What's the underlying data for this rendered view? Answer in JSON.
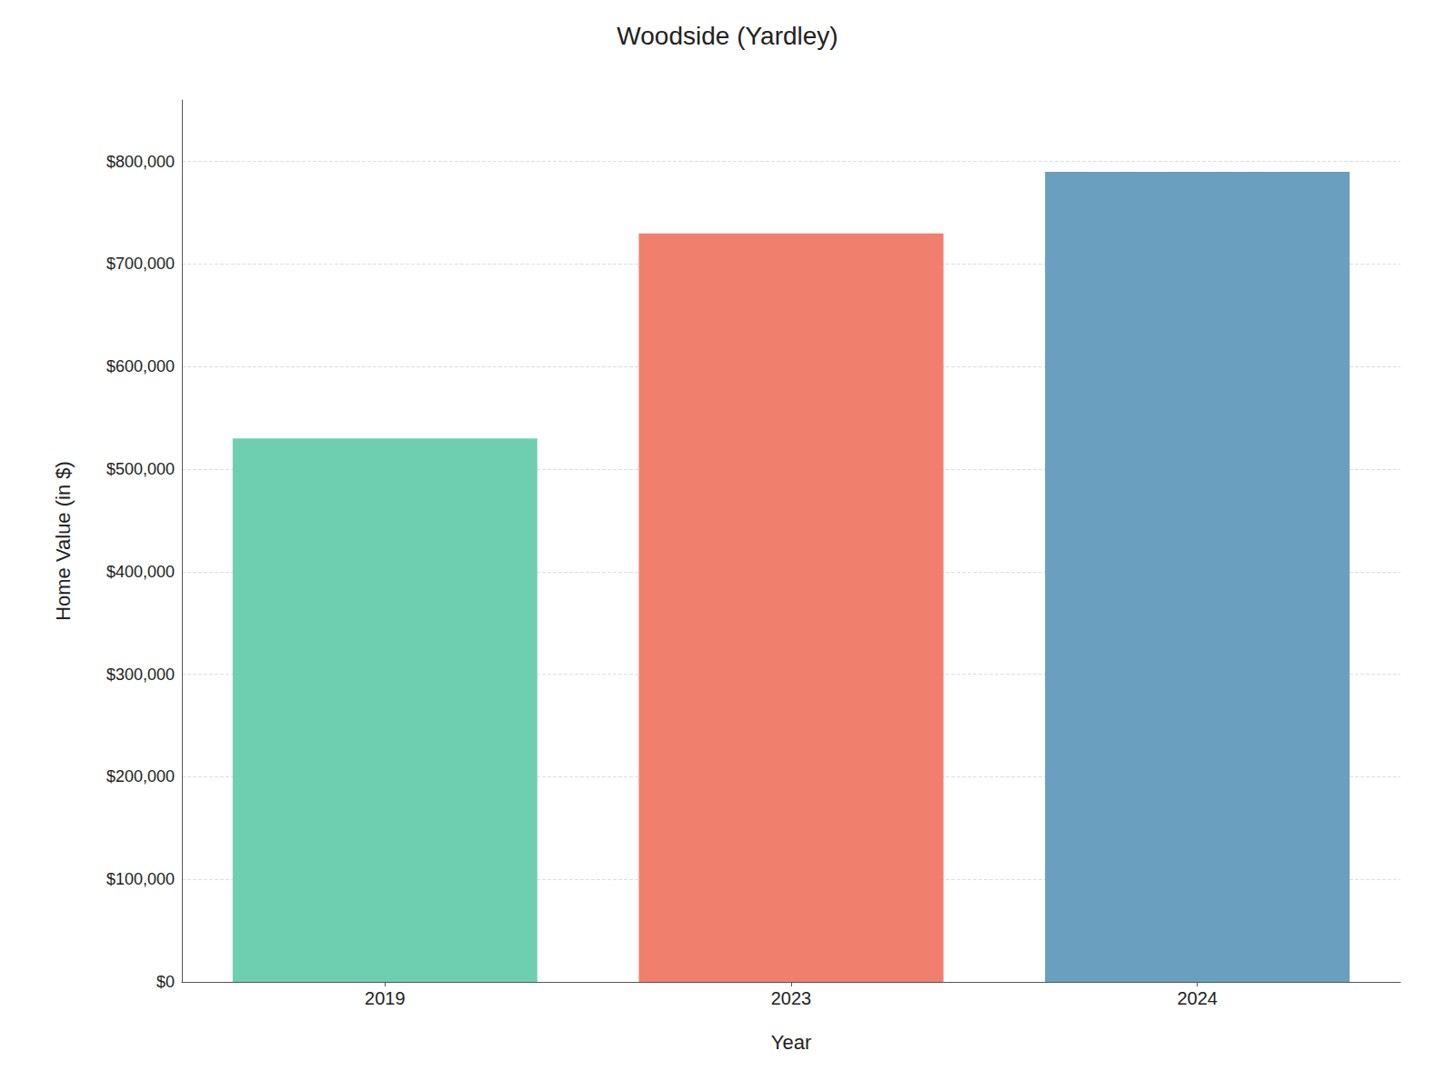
{
  "chart_data": {
    "type": "bar",
    "title": "Woodside (Yardley)",
    "xlabel": "Year",
    "ylabel": "Home Value (in $)",
    "categories": [
      "2019",
      "2023",
      "2024"
    ],
    "values": [
      530000,
      730000,
      790000
    ],
    "colors": [
      "#6ECFB0",
      "#F07F6E",
      "#6A9FBF"
    ],
    "ylim": [
      0,
      860000
    ],
    "yticks": [
      {
        "value": 0,
        "label": "$0"
      },
      {
        "value": 100000,
        "label": "$100,000"
      },
      {
        "value": 200000,
        "label": "$200,000"
      },
      {
        "value": 300000,
        "label": "$300,000"
      },
      {
        "value": 400000,
        "label": "$400,000"
      },
      {
        "value": 500000,
        "label": "$500,000"
      },
      {
        "value": 600000,
        "label": "$600,000"
      },
      {
        "value": 700000,
        "label": "$700,000"
      },
      {
        "value": 800000,
        "label": "$800,000"
      }
    ],
    "grid": true
  }
}
